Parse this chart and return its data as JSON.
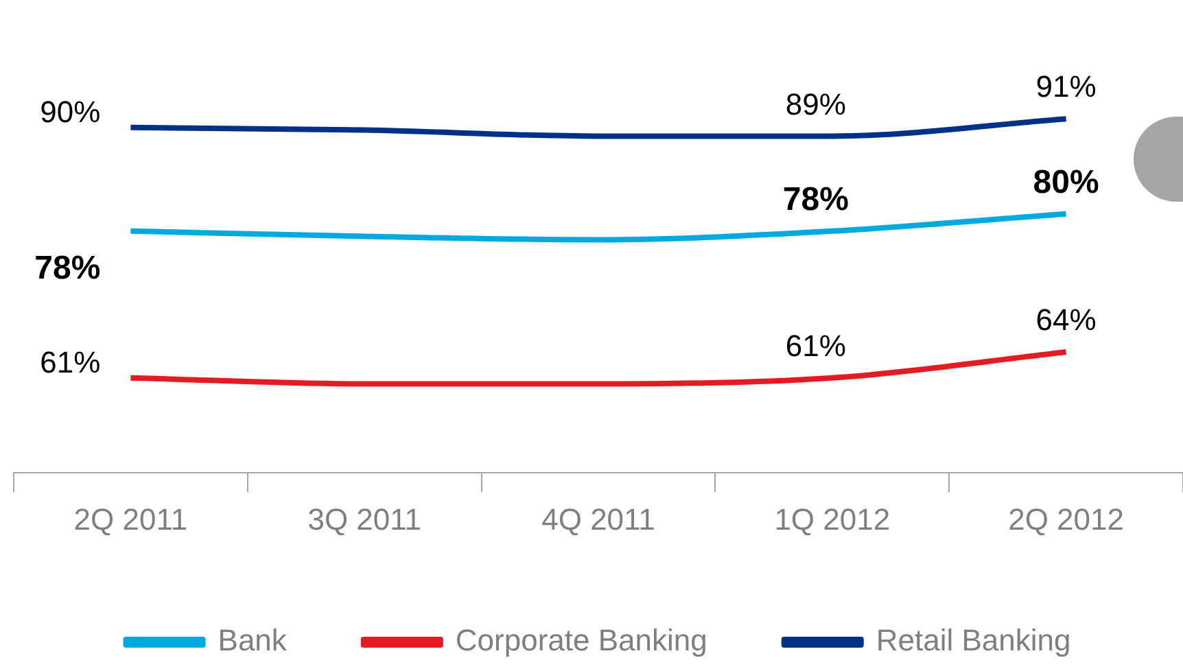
{
  "chart_data": {
    "type": "line",
    "categories": [
      "2Q 2011",
      "3Q 2011",
      "4Q 2011",
      "1Q 2012",
      "2Q 2012"
    ],
    "series": [
      {
        "name": "Bank",
        "color": "#00a9e0",
        "values": [
          78,
          77.4,
          77,
          78,
          80
        ],
        "value_labels": [
          "78%",
          null,
          null,
          "78%",
          "80%"
        ]
      },
      {
        "name": "Corporate Banking",
        "color": "#e31b23",
        "values": [
          61,
          60.3,
          60.3,
          61,
          64
        ],
        "value_labels": [
          "61%",
          null,
          null,
          "61%",
          "64%"
        ]
      },
      {
        "name": "Retail Banking",
        "color": "#003087",
        "values": [
          90,
          89.7,
          89,
          89,
          91
        ],
        "value_labels": [
          "90%",
          null,
          null,
          "89%",
          "91%"
        ]
      }
    ],
    "tick_labels": "x",
    "grid": false,
    "legend": "bottom",
    "marker": "none",
    "line_style": "solid"
  }
}
